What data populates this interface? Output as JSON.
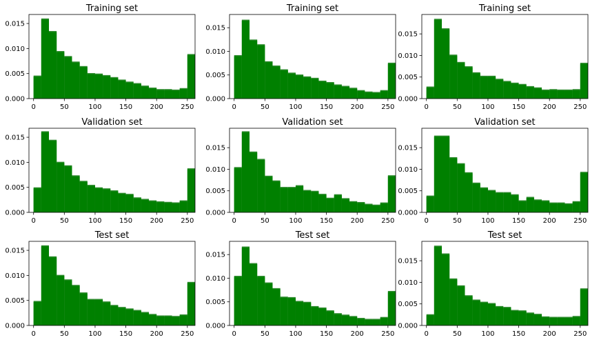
{
  "chart_data": [
    {
      "type": "bar",
      "title": "Training set",
      "xlim": [
        -7.5,
        262.5
      ],
      "ylim": [
        0,
        0.0168
      ],
      "xticks": [
        0,
        50,
        100,
        150,
        200,
        250
      ],
      "yticks": [
        0.0,
        0.005,
        0.01,
        0.015
      ],
      "xtick_labels": [
        "0",
        "50",
        "100",
        "150",
        "200",
        "250"
      ],
      "ytick_labels": [
        "0.000",
        "0.005",
        "0.010",
        "0.015"
      ],
      "bin_width": 12.5,
      "bin_starts": [
        0,
        12.5,
        25,
        37.5,
        50,
        62.5,
        75,
        87.5,
        100,
        112.5,
        125,
        137.5,
        150,
        162.5,
        175,
        187.5,
        200,
        212.5,
        225,
        237.5,
        250
      ],
      "values": [
        0.0046,
        0.016,
        0.0135,
        0.0095,
        0.0085,
        0.0074,
        0.0065,
        0.0051,
        0.005,
        0.0047,
        0.0043,
        0.0038,
        0.0034,
        0.0031,
        0.0026,
        0.0022,
        0.0019,
        0.0019,
        0.0018,
        0.0021,
        0.0089
      ],
      "color": "#008000"
    },
    {
      "type": "bar",
      "title": "Training set",
      "xlim": [
        -7.5,
        262.5
      ],
      "ylim": [
        0,
        0.0178
      ],
      "xticks": [
        0,
        50,
        100,
        150,
        200,
        250
      ],
      "yticks": [
        0.0,
        0.005,
        0.01,
        0.015
      ],
      "xtick_labels": [
        "0",
        "50",
        "100",
        "150",
        "200",
        "250"
      ],
      "ytick_labels": [
        "0.000",
        "0.005",
        "0.010",
        "0.015"
      ],
      "bin_width": 12.5,
      "bin_starts": [
        0,
        12.5,
        25,
        37.5,
        50,
        62.5,
        75,
        87.5,
        100,
        112.5,
        125,
        137.5,
        150,
        162.5,
        175,
        187.5,
        200,
        212.5,
        225,
        237.5,
        250
      ],
      "values": [
        0.0092,
        0.0167,
        0.0125,
        0.0115,
        0.0079,
        0.007,
        0.0062,
        0.0055,
        0.0051,
        0.0047,
        0.0044,
        0.0038,
        0.0035,
        0.003,
        0.0027,
        0.0023,
        0.0018,
        0.0015,
        0.0014,
        0.0018,
        0.0076
      ],
      "color": "#008000"
    },
    {
      "type": "bar",
      "title": "Training set",
      "xlim": [
        -7.5,
        262.5
      ],
      "ylim": [
        0,
        0.0195
      ],
      "xticks": [
        0,
        50,
        100,
        150,
        200,
        250
      ],
      "yticks": [
        0.0,
        0.005,
        0.01,
        0.015
      ],
      "xtick_labels": [
        "0",
        "50",
        "100",
        "150",
        "200",
        "250"
      ],
      "ytick_labels": [
        "0.000",
        "0.005",
        "0.010",
        "0.015"
      ],
      "bin_width": 12.5,
      "bin_starts": [
        0,
        12.5,
        25,
        37.5,
        50,
        62.5,
        75,
        87.5,
        100,
        112.5,
        125,
        137.5,
        150,
        162.5,
        175,
        187.5,
        200,
        212.5,
        225,
        237.5,
        250
      ],
      "values": [
        0.0028,
        0.0185,
        0.0163,
        0.0102,
        0.0085,
        0.0075,
        0.0061,
        0.0053,
        0.0053,
        0.0046,
        0.0041,
        0.0037,
        0.0034,
        0.0029,
        0.0026,
        0.0021,
        0.0022,
        0.0021,
        0.0021,
        0.0022,
        0.0083
      ],
      "color": "#008000"
    },
    {
      "type": "bar",
      "title": "Validation set",
      "xlim": [
        -7.5,
        262.5
      ],
      "ylim": [
        0,
        0.0168
      ],
      "xticks": [
        0,
        50,
        100,
        150,
        200,
        250
      ],
      "yticks": [
        0.0,
        0.005,
        0.01,
        0.015
      ],
      "xtick_labels": [
        "0",
        "50",
        "100",
        "150",
        "200",
        "250"
      ],
      "ytick_labels": [
        "0.000",
        "0.005",
        "0.010",
        "0.015"
      ],
      "bin_width": 12.5,
      "bin_starts": [
        0,
        12.5,
        25,
        37.5,
        50,
        62.5,
        75,
        87.5,
        100,
        112.5,
        125,
        137.5,
        150,
        162.5,
        175,
        187.5,
        200,
        212.5,
        225,
        237.5,
        250
      ],
      "values": [
        0.005,
        0.0162,
        0.0145,
        0.0101,
        0.0094,
        0.0074,
        0.0063,
        0.0055,
        0.005,
        0.0048,
        0.0044,
        0.0039,
        0.0037,
        0.003,
        0.0027,
        0.0024,
        0.0022,
        0.0021,
        0.002,
        0.0024,
        0.0088
      ],
      "color": "#008000"
    },
    {
      "type": "bar",
      "title": "Validation set",
      "xlim": [
        -7.5,
        262.5
      ],
      "ylim": [
        0,
        0.0195
      ],
      "xticks": [
        0,
        50,
        100,
        150,
        200,
        250
      ],
      "yticks": [
        0.0,
        0.005,
        0.01,
        0.015
      ],
      "xtick_labels": [
        "0",
        "50",
        "100",
        "150",
        "200",
        "250"
      ],
      "ytick_labels": [
        "0.000",
        "0.005",
        "0.010",
        "0.015"
      ],
      "bin_width": 12.5,
      "bin_starts": [
        0,
        12.5,
        25,
        37.5,
        50,
        62.5,
        75,
        87.5,
        100,
        112.5,
        125,
        137.5,
        150,
        162.5,
        175,
        187.5,
        200,
        212.5,
        225,
        237.5,
        250
      ],
      "values": [
        0.0105,
        0.0188,
        0.0141,
        0.0124,
        0.0085,
        0.0074,
        0.0059,
        0.0059,
        0.0063,
        0.0052,
        0.005,
        0.0043,
        0.0034,
        0.0042,
        0.0033,
        0.0026,
        0.0024,
        0.002,
        0.0018,
        0.0023,
        0.0086
      ],
      "color": "#008000"
    },
    {
      "type": "bar",
      "title": "Validation set",
      "xlim": [
        -7.5,
        262.5
      ],
      "ylim": [
        0,
        0.0195
      ],
      "xticks": [
        0,
        50,
        100,
        150,
        200,
        250
      ],
      "yticks": [
        0.0,
        0.005,
        0.01,
        0.015
      ],
      "xtick_labels": [
        "0",
        "50",
        "100",
        "150",
        "200",
        "250"
      ],
      "ytick_labels": [
        "0.000",
        "0.005",
        "0.010",
        "0.015"
      ],
      "bin_width": 12.5,
      "bin_starts": [
        0,
        12.5,
        25,
        37.5,
        50,
        62.5,
        75,
        87.5,
        100,
        112.5,
        125,
        137.5,
        150,
        162.5,
        175,
        187.5,
        200,
        212.5,
        225,
        237.5,
        250
      ],
      "values": [
        0.0039,
        0.0178,
        0.0178,
        0.0128,
        0.0114,
        0.0093,
        0.0069,
        0.0058,
        0.0052,
        0.0047,
        0.0047,
        0.0042,
        0.0028,
        0.0036,
        0.003,
        0.0028,
        0.0023,
        0.0023,
        0.0021,
        0.0026,
        0.0094
      ],
      "color": "#008000"
    },
    {
      "type": "bar",
      "title": "Test set",
      "xlim": [
        -7.5,
        262.5
      ],
      "ylim": [
        0,
        0.0168
      ],
      "xticks": [
        0,
        50,
        100,
        150,
        200,
        250
      ],
      "yticks": [
        0.0,
        0.005,
        0.01,
        0.015
      ],
      "xtick_labels": [
        "0",
        "50",
        "100",
        "150",
        "200",
        "250"
      ],
      "ytick_labels": [
        "0.000",
        "0.005",
        "0.010",
        "0.015"
      ],
      "bin_width": 12.5,
      "bin_starts": [
        0,
        12.5,
        25,
        37.5,
        50,
        62.5,
        75,
        87.5,
        100,
        112.5,
        125,
        137.5,
        150,
        162.5,
        175,
        187.5,
        200,
        212.5,
        225,
        237.5,
        250
      ],
      "values": [
        0.0049,
        0.016,
        0.0138,
        0.0101,
        0.0092,
        0.0081,
        0.0066,
        0.0053,
        0.0053,
        0.0048,
        0.0041,
        0.0037,
        0.0034,
        0.0031,
        0.0027,
        0.0023,
        0.002,
        0.002,
        0.0019,
        0.0022,
        0.0087
      ],
      "color": "#008000"
    },
    {
      "type": "bar",
      "title": "Test set",
      "xlim": [
        -7.5,
        262.5
      ],
      "ylim": [
        0,
        0.0178
      ],
      "xticks": [
        0,
        50,
        100,
        150,
        200,
        250
      ],
      "yticks": [
        0.0,
        0.005,
        0.01,
        0.015
      ],
      "xtick_labels": [
        "0",
        "50",
        "100",
        "150",
        "200",
        "250"
      ],
      "ytick_labels": [
        "0.000",
        "0.005",
        "0.010",
        "0.015"
      ],
      "bin_width": 12.5,
      "bin_starts": [
        0,
        12.5,
        25,
        37.5,
        50,
        62.5,
        75,
        87.5,
        100,
        112.5,
        125,
        137.5,
        150,
        162.5,
        175,
        187.5,
        200,
        212.5,
        225,
        237.5,
        250
      ],
      "values": [
        0.0105,
        0.0167,
        0.0132,
        0.0105,
        0.0091,
        0.0079,
        0.0061,
        0.006,
        0.0052,
        0.005,
        0.0041,
        0.0038,
        0.0032,
        0.0026,
        0.0023,
        0.002,
        0.0016,
        0.0014,
        0.0014,
        0.0018,
        0.0073
      ],
      "color": "#008000"
    },
    {
      "type": "bar",
      "title": "Test set",
      "xlim": [
        -7.5,
        262.5
      ],
      "ylim": [
        0,
        0.0195
      ],
      "xticks": [
        0,
        50,
        100,
        150,
        200,
        250
      ],
      "yticks": [
        0.0,
        0.005,
        0.01,
        0.015
      ],
      "xtick_labels": [
        "0",
        "50",
        "100",
        "150",
        "200",
        "250"
      ],
      "ytick_labels": [
        "0.000",
        "0.005",
        "0.010",
        "0.015"
      ],
      "bin_width": 12.5,
      "bin_starts": [
        0,
        12.5,
        25,
        37.5,
        50,
        62.5,
        75,
        87.5,
        100,
        112.5,
        125,
        137.5,
        150,
        162.5,
        175,
        187.5,
        200,
        212.5,
        225,
        237.5,
        250
      ],
      "values": [
        0.0026,
        0.0185,
        0.0167,
        0.0109,
        0.0093,
        0.007,
        0.006,
        0.0055,
        0.0052,
        0.0045,
        0.0043,
        0.0036,
        0.0035,
        0.003,
        0.0027,
        0.0021,
        0.002,
        0.002,
        0.002,
        0.0022,
        0.0086
      ],
      "color": "#008000"
    }
  ]
}
